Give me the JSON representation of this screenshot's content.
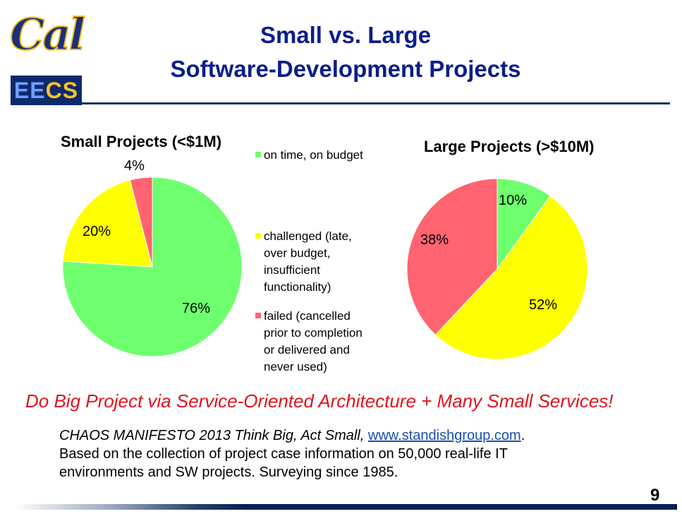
{
  "logo": {
    "cal": "Cal",
    "eecs_ee": "EE",
    "eecs_cs": "CS"
  },
  "title": {
    "line1": "Small vs. Large",
    "line2": "Software-Development Projects"
  },
  "colors": {
    "on_time": "#6eff6e",
    "challenged": "#ffff00",
    "failed": "#ff6470",
    "title": "#0b1e8a",
    "slogan": "#e0141c"
  },
  "chart_data": [
    {
      "type": "pie",
      "title": "Small Projects (<$1M)",
      "categories": [
        "on time, on budget",
        "challenged (late, over budget, insufficient functionality)",
        "failed (cancelled prior to completion or delivered and never used)"
      ],
      "values": [
        76,
        20,
        4
      ],
      "labels": [
        "76%",
        "20%",
        "4%"
      ],
      "legend": "right"
    },
    {
      "type": "pie",
      "title": "Large Projects (>$10M)",
      "categories": [
        "on time, on budget",
        "challenged (late, over budget, insufficient functionality)",
        "failed (cancelled prior to completion or delivered and never used)"
      ],
      "values": [
        10,
        52,
        38
      ],
      "labels": [
        "10%",
        "52%",
        "38%"
      ]
    }
  ],
  "legend": {
    "items": [
      {
        "lines": [
          "on time, on budget"
        ]
      },
      {
        "lines": [
          "challenged (late,",
          "over budget,",
          "insufficient",
          "functionality)"
        ]
      },
      {
        "lines": [
          "failed (cancelled",
          "prior to completion",
          "or delivered and",
          "never used)"
        ]
      }
    ]
  },
  "slogan": "Do Big Project via Service-Oriented Architecture + Many Small Services!",
  "source": {
    "italic": "CHAOS MANIFESTO 2013 Think Big, Act Small, ",
    "link": "www.standishgroup.com",
    "after_link": ".",
    "line2": "Based on the collection of project case information on 50,000 real-life IT",
    "line3": "environments and SW projects. Surveying since 1985."
  },
  "page_number": "9"
}
